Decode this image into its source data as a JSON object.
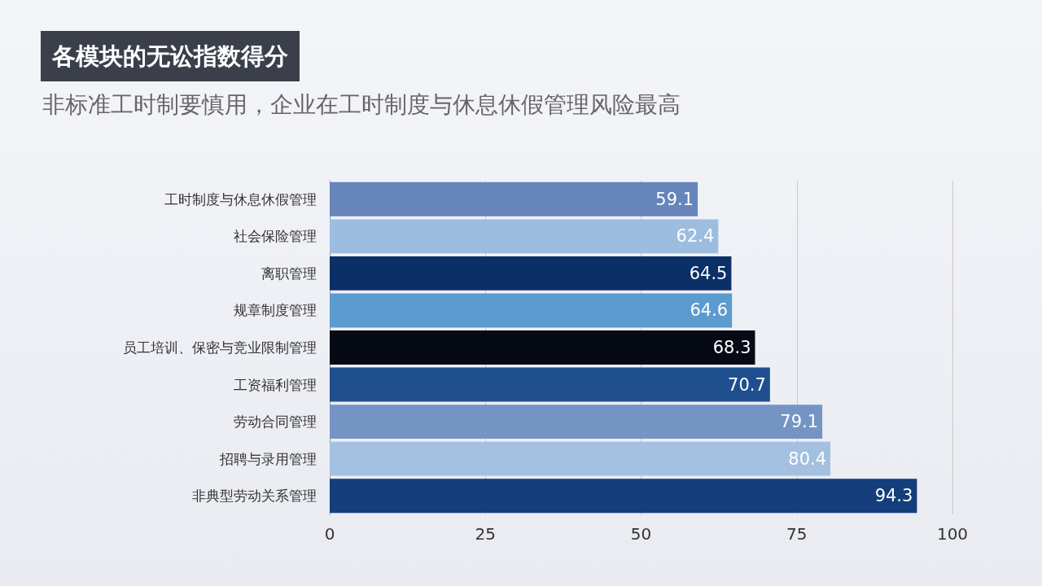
{
  "chart_data": {
    "type": "bar",
    "orientation": "horizontal",
    "title": "各模块的无讼指数得分",
    "subtitle": "非标准工时制要慎用，企业在工时制度与休息休假管理风险最高",
    "categories": [
      "工时制度与休息休假管理",
      "社会保险管理",
      "离职管理",
      "规章制度管理",
      "员工培训、保密与竞业限制管理",
      "工资福利管理",
      "劳动合同管理",
      "招聘与录用管理",
      "非典型劳动关系管理"
    ],
    "values": [
      59.1,
      62.4,
      64.5,
      64.6,
      68.3,
      70.7,
      79.1,
      80.4,
      94.3
    ],
    "colors": [
      "#6585bb",
      "#9dbde0",
      "#0b2f67",
      "#5b9bd0",
      "#050a15",
      "#1f4f8f",
      "#7494c4",
      "#a3c0e0",
      "#143e7c"
    ],
    "xlim": [
      0,
      100
    ],
    "xticks": [
      0,
      25,
      50,
      75,
      100
    ],
    "grid": "x",
    "data_labels": true
  }
}
